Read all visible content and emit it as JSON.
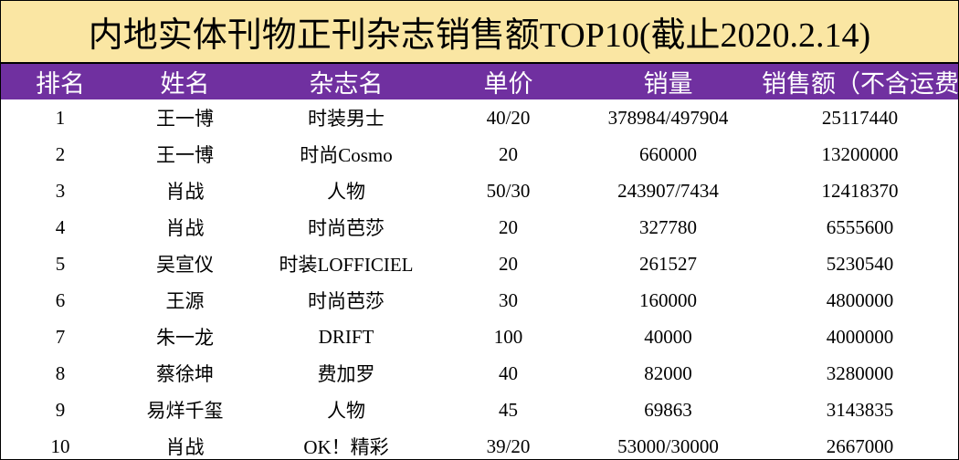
{
  "title": "内地实体刊物正刊杂志销售额TOP10(截止2020.2.14)",
  "columns": [
    "排名",
    "姓名",
    "杂志名",
    "单价",
    "销量",
    "销售额（不含运费）"
  ],
  "rows": [
    {
      "rank": "1",
      "name": "王一博",
      "magazine": "时装男士",
      "price": "40/20",
      "sales": "378984/497904",
      "revenue": "25117440"
    },
    {
      "rank": "2",
      "name": "王一博",
      "magazine": "时尚Cosmo",
      "price": "20",
      "sales": "660000",
      "revenue": "13200000"
    },
    {
      "rank": "3",
      "name": "肖战",
      "magazine": "人物",
      "price": "50/30",
      "sales": "243907/7434",
      "revenue": "12418370"
    },
    {
      "rank": "4",
      "name": "肖战",
      "magazine": "时尚芭莎",
      "price": "20",
      "sales": "327780",
      "revenue": "6555600"
    },
    {
      "rank": "5",
      "name": "吴宣仪",
      "magazine": "时装LOFFICIEL",
      "price": "20",
      "sales": "261527",
      "revenue": "5230540"
    },
    {
      "rank": "6",
      "name": "王源",
      "magazine": "时尚芭莎",
      "price": "30",
      "sales": "160000",
      "revenue": "4800000"
    },
    {
      "rank": "7",
      "name": "朱一龙",
      "magazine": "DRIFT",
      "price": "100",
      "sales": "40000",
      "revenue": "4000000"
    },
    {
      "rank": "8",
      "name": "蔡徐坤",
      "magazine": "费加罗",
      "price": "40",
      "sales": "82000",
      "revenue": "3280000"
    },
    {
      "rank": "9",
      "name": "易烊千玺",
      "magazine": "人物",
      "price": "45",
      "sales": "69863",
      "revenue": "3143835"
    },
    {
      "rank": "10",
      "name": "肖战",
      "magazine": "OK！精彩",
      "price": "39/20",
      "sales": "53000/30000",
      "revenue": "2667000"
    }
  ],
  "colors": {
    "title_background": "#fae6a3",
    "header_background": "#7030a0",
    "header_text": "#ffffff"
  }
}
